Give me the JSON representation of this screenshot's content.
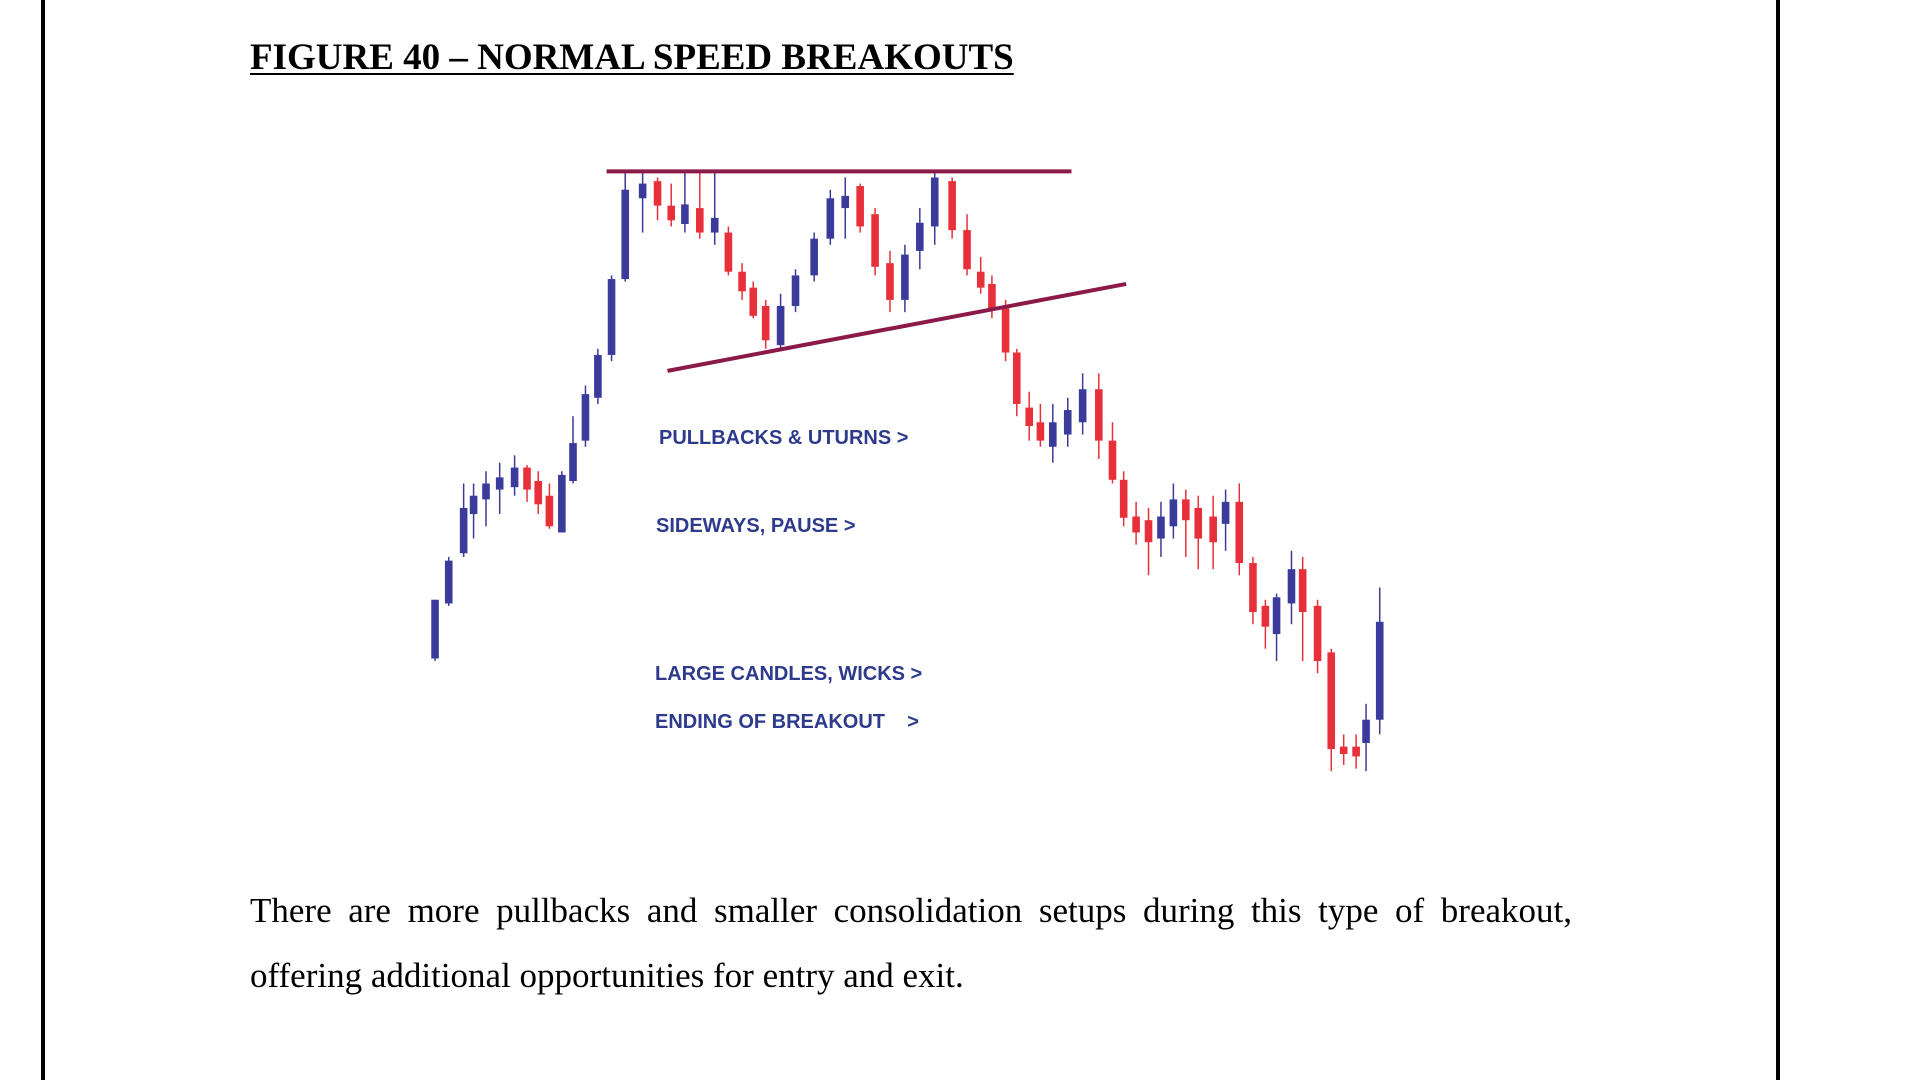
{
  "header": {
    "title": "FIGURE 40 – NORMAL SPEED BREAKOUTS"
  },
  "figure": {
    "annotations": [
      "PULLBACKS & UTURNS >",
      "SIDEWAYS, PAUSE >",
      "LARGE CANDLES, WICKS >",
      "ENDING OF BREAKOUT    >"
    ]
  },
  "body": {
    "paragraph": "There are more pullbacks and smaller consolidation setups during this type of breakout, offering additional opportunities for entry and exit."
  }
}
